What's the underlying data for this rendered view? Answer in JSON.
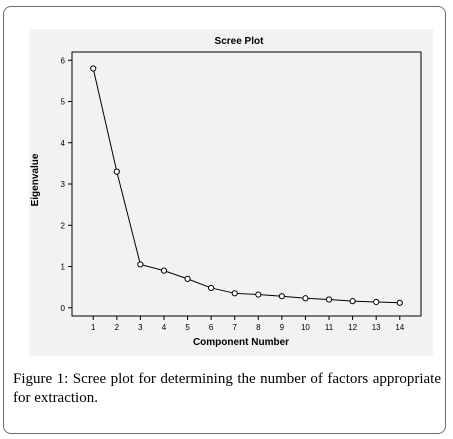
{
  "caption": {
    "label": "Figure 1:",
    "text": "Scree plot for determining the number of factors appropriate for extraction."
  },
  "chart_data": {
    "type": "line",
    "title": "Scree Plot",
    "xlabel": "Component Number",
    "ylabel": "Eigenvalue",
    "x": [
      1,
      2,
      3,
      4,
      5,
      6,
      7,
      8,
      9,
      10,
      11,
      12,
      13,
      14
    ],
    "series": [
      {
        "values": [
          5.8,
          3.3,
          1.05,
          0.9,
          0.7,
          0.48,
          0.35,
          0.32,
          0.28,
          0.23,
          0.2,
          0.16,
          0.14,
          0.12
        ]
      }
    ],
    "xticks": [
      "1",
      "2",
      "3",
      "4",
      "5",
      "6",
      "7",
      "8",
      "9",
      "10",
      "11",
      "12",
      "13",
      "14"
    ],
    "yticks": [
      "0",
      "1",
      "2",
      "3",
      "4",
      "5",
      "6"
    ],
    "ylim": [
      -0.2,
      6.2
    ],
    "xlim": [
      0.1,
      14.9
    ],
    "grid": false,
    "colors": {
      "line": "#000000",
      "marker_fill": "#ffffff",
      "background": "#f2f2f2"
    }
  }
}
